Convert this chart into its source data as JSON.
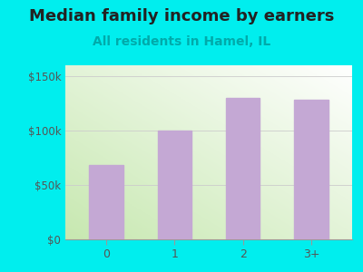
{
  "title": "Median family income by earners",
  "subtitle": "All residents in Hamel, IL",
  "categories": [
    "0",
    "1",
    "2",
    "3+"
  ],
  "values": [
    68000,
    100000,
    130000,
    128000
  ],
  "bar_color": "#C4A8D4",
  "title_color": "#222222",
  "subtitle_color": "#00AAAA",
  "title_fontsize": 13,
  "subtitle_fontsize": 10,
  "background_outer": "#00EEEE",
  "ytick_labels": [
    "$0",
    "$50k",
    "$100k",
    "$150k"
  ],
  "ytick_values": [
    0,
    50000,
    100000,
    150000
  ],
  "ylim": [
    0,
    160000
  ],
  "tick_color": "#555555"
}
